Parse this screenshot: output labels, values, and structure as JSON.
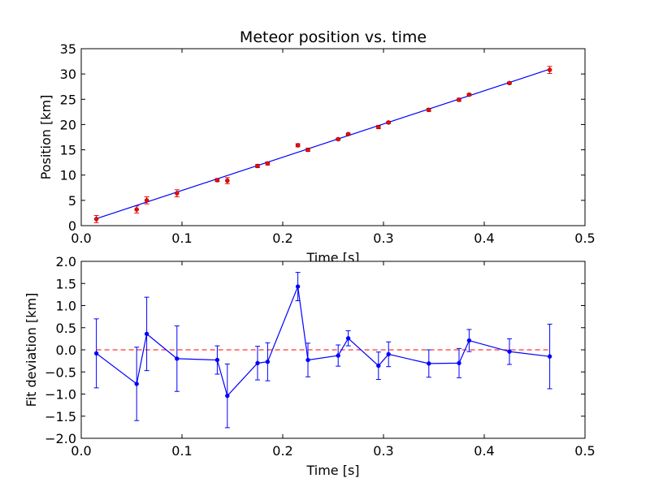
{
  "chart_data": [
    {
      "type": "scatter",
      "title": "Meteor position vs. time",
      "xlabel": "Time [s]",
      "ylabel": "Position [km]",
      "xlim": [
        0.0,
        0.5
      ],
      "ylim": [
        0,
        35
      ],
      "xticks": [
        "0.0",
        "0.1",
        "0.2",
        "0.3",
        "0.4",
        "0.5"
      ],
      "yticks": [
        "0",
        "5",
        "10",
        "15",
        "20",
        "25",
        "30",
        "35"
      ],
      "grid": false,
      "series": [
        {
          "kind": "errorbar-points",
          "color": "#ff0000",
          "x": [
            0.015,
            0.055,
            0.065,
            0.095,
            0.135,
            0.145,
            0.175,
            0.185,
            0.215,
            0.225,
            0.255,
            0.265,
            0.295,
            0.305,
            0.345,
            0.375,
            0.385,
            0.425,
            0.465
          ],
          "y": [
            1.3,
            3.2,
            5.0,
            6.4,
            9.0,
            8.9,
            11.8,
            12.3,
            15.9,
            15.0,
            17.1,
            18.1,
            19.5,
            20.4,
            22.9,
            24.9,
            25.9,
            28.2,
            30.8
          ],
          "yerr": [
            0.7,
            0.7,
            0.7,
            0.7,
            0.3,
            0.6,
            0.3,
            0.3,
            0.3,
            0.3,
            0.2,
            0.2,
            0.3,
            0.2,
            0.3,
            0.3,
            0.2,
            0.2,
            0.7
          ]
        },
        {
          "kind": "fit-line",
          "color": "#0000ff",
          "x": [
            0.015,
            0.465
          ],
          "y": [
            1.38,
            30.95
          ]
        }
      ]
    },
    {
      "type": "line",
      "xlabel": "Time [s]",
      "ylabel": "Fit deviation [km]",
      "xlim": [
        0.0,
        0.5
      ],
      "ylim": [
        -2.0,
        2.0
      ],
      "xticks": [
        "0.0",
        "0.1",
        "0.2",
        "0.3",
        "0.4",
        "0.5"
      ],
      "yticks": [
        "−2.0",
        "−1.5",
        "−1.0",
        "−0.5",
        "0.0",
        "0.5",
        "1.0",
        "1.5",
        "2.0"
      ],
      "grid": false,
      "zero_line": {
        "y": 0,
        "color": "#ff0000",
        "style": "dashed"
      },
      "series": [
        {
          "kind": "errorbar-line",
          "color": "#0000ff",
          "x": [
            0.015,
            0.055,
            0.065,
            0.095,
            0.135,
            0.145,
            0.175,
            0.185,
            0.215,
            0.225,
            0.255,
            0.265,
            0.295,
            0.305,
            0.345,
            0.375,
            0.385,
            0.425,
            0.465
          ],
          "y": [
            -0.08,
            -0.77,
            0.36,
            -0.2,
            -0.23,
            -1.04,
            -0.3,
            -0.27,
            1.43,
            -0.23,
            -0.13,
            0.26,
            -0.36,
            -0.1,
            -0.31,
            -0.3,
            0.21,
            -0.04,
            -0.15
          ],
          "yerr": [
            0.78,
            0.83,
            0.83,
            0.74,
            0.32,
            0.72,
            0.38,
            0.43,
            0.32,
            0.38,
            0.24,
            0.17,
            0.31,
            0.28,
            0.31,
            0.33,
            0.25,
            0.29,
            0.73
          ]
        }
      ]
    }
  ]
}
